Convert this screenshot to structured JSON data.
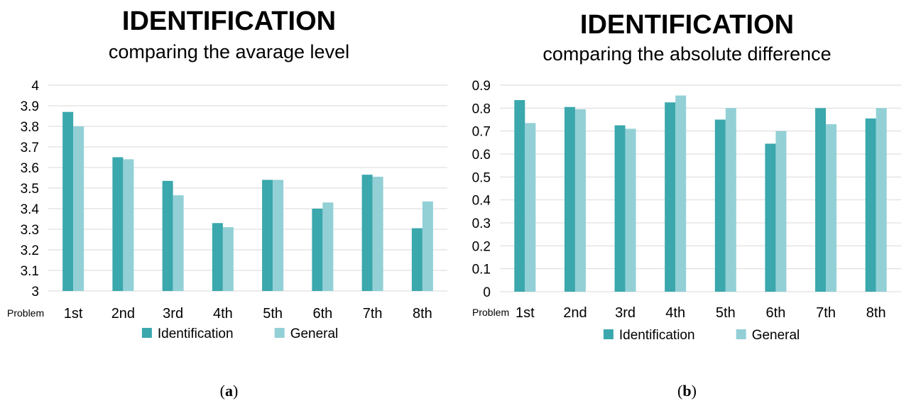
{
  "colors": {
    "identification": "#3aa8ad",
    "general": "#92d0d6",
    "grid": "#d9d9d9"
  },
  "chart_data": [
    {
      "type": "bar",
      "title": "IDENTIFICATION",
      "subtitle": "comparing the avarage level",
      "x_prefix": "Problem",
      "categories": [
        "1st",
        "2nd",
        "3rd",
        "4th",
        "5th",
        "6th",
        "7th",
        "8th"
      ],
      "series": [
        {
          "name": "Identification",
          "values": [
            3.87,
            3.65,
            3.535,
            3.33,
            3.54,
            3.4,
            3.565,
            3.305
          ]
        },
        {
          "name": "General",
          "values": [
            3.8,
            3.64,
            3.465,
            3.31,
            3.54,
            3.43,
            3.555,
            3.435
          ]
        }
      ],
      "ylim": [
        3,
        4
      ],
      "yticks": [
        "3",
        "3.1",
        "3.2",
        "3.3",
        "3.4",
        "3.5",
        "3.6",
        "3.7",
        "3.8",
        "3.9",
        "4"
      ],
      "grid": true,
      "legend": "bottom",
      "caption_label": "a"
    },
    {
      "type": "bar",
      "title": "IDENTIFICATION",
      "subtitle": "comparing the absolute difference",
      "x_prefix": "Problem",
      "categories": [
        "1st",
        "2nd",
        "3rd",
        "4th",
        "5th",
        "6th",
        "7th",
        "8th"
      ],
      "series": [
        {
          "name": "Identification",
          "values": [
            0.835,
            0.805,
            0.725,
            0.825,
            0.75,
            0.645,
            0.8,
            0.755
          ]
        },
        {
          "name": "General",
          "values": [
            0.735,
            0.795,
            0.71,
            0.855,
            0.8,
            0.7,
            0.73,
            0.8
          ]
        }
      ],
      "ylim": [
        0,
        0.9
      ],
      "yticks": [
        "0",
        "0.1",
        "0.2",
        "0.3",
        "0.4",
        "0.5",
        "0.6",
        "0.7",
        "0.8",
        "0.9"
      ],
      "grid": true,
      "legend": "bottom",
      "caption_label": "b"
    }
  ]
}
